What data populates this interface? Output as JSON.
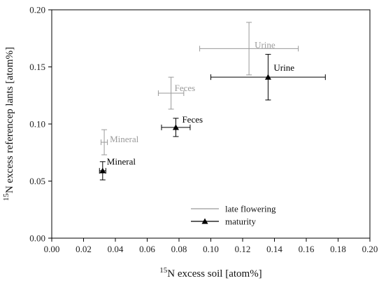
{
  "chart_data": {
    "type": "scatter",
    "title": "",
    "xlabel": {
      "sup": "15",
      "text": "N excess soil [atom%]"
    },
    "ylabel": {
      "sup": "15",
      "text": "N excess referencep lants [atom%]"
    },
    "xlim": [
      0.0,
      0.2
    ],
    "ylim": [
      0.0,
      0.2
    ],
    "x_ticks": [
      "0.00",
      "0.02",
      "0.04",
      "0.06",
      "0.08",
      "0.10",
      "0.12",
      "0.14",
      "0.16",
      "0.18",
      "0.20"
    ],
    "y_ticks": [
      "0.00",
      "0.05",
      "0.10",
      "0.15",
      "0.20"
    ],
    "grid": false,
    "legend_placement": "bottom-center",
    "series": [
      {
        "name": "late flowering",
        "color": "#9a9a9a",
        "marker": "none",
        "points": [
          {
            "label": "Mineral",
            "x": 0.033,
            "y": 0.084,
            "x_err": 0.002,
            "y_err": 0.011
          },
          {
            "label": "Feces",
            "x": 0.075,
            "y": 0.127,
            "x_err": 0.008,
            "y_err": 0.014
          },
          {
            "label": "Urine",
            "x": 0.124,
            "y": 0.166,
            "x_err": 0.031,
            "y_err": 0.023
          }
        ]
      },
      {
        "name": "maturity",
        "color": "#000000",
        "marker": "triangle",
        "points": [
          {
            "label": "Mineral",
            "x": 0.032,
            "y": 0.059,
            "x_err": 0.002,
            "y_err": 0.008
          },
          {
            "label": "Feces",
            "x": 0.078,
            "y": 0.097,
            "x_err": 0.009,
            "y_err": 0.008
          },
          {
            "label": "Urine",
            "x": 0.136,
            "y": 0.141,
            "x_err": 0.036,
            "y_err": 0.02
          }
        ]
      }
    ]
  }
}
